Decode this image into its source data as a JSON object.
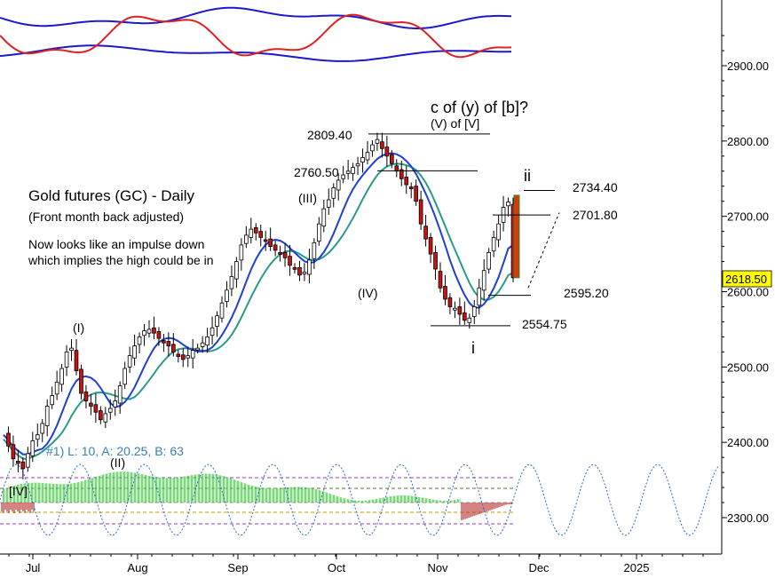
{
  "chart_data": {
    "type": "candlestick",
    "title": "Gold futures (GC) - Daily",
    "subtitle": "(Front month back adjusted)",
    "commentary": [
      "Now looks like an impulse down",
      "which implies the high could be in"
    ],
    "wave_question": "c of (y) of [b]?",
    "wave_sublabel": "(V) of [V]",
    "y_axis": {
      "range": [
        2270,
        2980
      ],
      "ticks": [
        "2300.00",
        "2400.00",
        "2500.00",
        "2600.00",
        "2700.00",
        "2800.00",
        "2900.00"
      ],
      "ticks_numeric": [
        2300,
        2400,
        2500,
        2600,
        2700,
        2800,
        2900
      ],
      "current_price_label": "2618.50",
      "current_price": 2618.5
    },
    "x_axis": {
      "labels": [
        "Jul",
        "Aug",
        "Sep",
        "Oct",
        "Nov",
        "Dec",
        "2025"
      ]
    },
    "levels": [
      {
        "label": "2809.40",
        "value": 2809.4
      },
      {
        "label": "2760.50",
        "value": 2760.5
      },
      {
        "label": "2734.40",
        "value": 2734.4
      },
      {
        "label": "2701.80",
        "value": 2701.8
      },
      {
        "label": "2595.20",
        "value": 2595.2
      },
      {
        "label": "2554.75",
        "value": 2554.75
      }
    ],
    "wave_labels": [
      "[IV]",
      "(I)",
      "(II)",
      "(III)",
      "(IV)",
      "i",
      "ii"
    ],
    "cycle_label": "#1) L: 10, A: 20.25, B: 63",
    "price_path": [
      2410,
      2395,
      2378,
      2372,
      2365,
      2385,
      2402,
      2410,
      2425,
      2448,
      2462,
      2480,
      2498,
      2520,
      2525,
      2495,
      2465,
      2455,
      2448,
      2440,
      2430,
      2438,
      2445,
      2455,
      2475,
      2498,
      2515,
      2528,
      2540,
      2548,
      2550,
      2545,
      2538,
      2532,
      2528,
      2520,
      2514,
      2510,
      2515,
      2522,
      2525,
      2532,
      2540,
      2552,
      2568,
      2585,
      2602,
      2620,
      2640,
      2662,
      2675,
      2683,
      2678,
      2672,
      2668,
      2660,
      2655,
      2650,
      2645,
      2635,
      2630,
      2622,
      2626,
      2642,
      2665,
      2690,
      2710,
      2722,
      2738,
      2748,
      2755,
      2760,
      2765,
      2770,
      2778,
      2785,
      2795,
      2802,
      2790,
      2780,
      2770,
      2760,
      2750,
      2742,
      2738,
      2720,
      2690,
      2670,
      2650,
      2630,
      2605,
      2590,
      2580,
      2578,
      2570,
      2562,
      2565,
      2580,
      2605,
      2628,
      2652,
      2672,
      2690,
      2712,
      2719,
      2618.5
    ]
  }
}
